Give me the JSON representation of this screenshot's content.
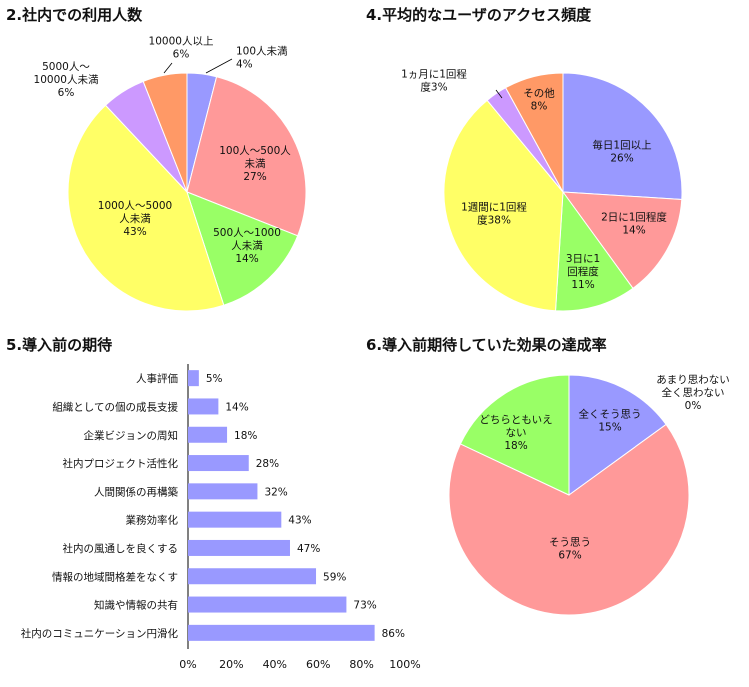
{
  "titles": {
    "p2": "2.社内での利用人数",
    "p4": "4.平均的なユーザのアクセス頻度",
    "p5": "5.導入前の期待",
    "p6": "6.導入前期待していた効果の達成率"
  },
  "chart_data": [
    {
      "type": "pie",
      "title": "2.社内での利用人数",
      "slices": [
        {
          "label": "100人未満",
          "value": 4,
          "color": "#9999ff"
        },
        {
          "label": "100人～500人未満",
          "value": 27,
          "color": "#ff9999"
        },
        {
          "label": "500人～1000人未満",
          "value": 14,
          "color": "#99ff66"
        },
        {
          "label": "1000人～5000人未満",
          "value": 43,
          "color": "#ffff66"
        },
        {
          "label": "5000人～10000人未満",
          "value": 6,
          "color": "#cc99ff"
        },
        {
          "label": "10000人以上",
          "value": 6,
          "color": "#ff9966"
        }
      ],
      "label_lines": [
        [
          "100人未満",
          "4%"
        ],
        [
          "100人～500人",
          "未満",
          "27%"
        ],
        [
          "500人～1000",
          "人未満",
          "14%"
        ],
        [
          "1000人～5000",
          "人未満",
          "43%"
        ],
        [
          "5000人～",
          "10000人未満",
          "6%"
        ],
        [
          "10000人以上",
          "6%"
        ]
      ]
    },
    {
      "type": "pie",
      "title": "4.平均的なユーザのアクセス頻度",
      "slices": [
        {
          "label": "毎日1回以上",
          "value": 26,
          "color": "#9999ff"
        },
        {
          "label": "2日に1回程度",
          "value": 14,
          "color": "#ff9999"
        },
        {
          "label": "3日に1回程度",
          "value": 11,
          "color": "#99ff66"
        },
        {
          "label": "1週間に1回程度",
          "value": 38,
          "color": "#ffff66"
        },
        {
          "label": "1ヵ月に1回程度",
          "value": 3,
          "color": "#cc99ff"
        },
        {
          "label": "その他",
          "value": 8,
          "color": "#ff9966"
        }
      ],
      "label_lines": [
        [
          "毎日1回以上",
          "26%"
        ],
        [
          "2日に1回程度",
          "14%"
        ],
        [
          "3日に1",
          "回程度",
          "11%"
        ],
        [
          "1週間に1回程",
          "度38%"
        ],
        [
          "1ヵ月に1回程",
          "度3%"
        ],
        [
          "その他",
          "8%"
        ]
      ]
    },
    {
      "type": "bar",
      "orientation": "horizontal",
      "title": "5.導入前の期待",
      "categories": [
        "人事評価",
        "組織としての個の成長支援",
        "企業ビジョンの周知",
        "社内プロジェクト活性化",
        "人間関係の再構築",
        "業務効率化",
        "社内の風通しを良くする",
        "情報の地域間格差をなくす",
        "知識や情報の共有",
        "社内のコミュニケーション円滑化"
      ],
      "values": [
        5,
        14,
        18,
        28,
        32,
        43,
        47,
        59,
        73,
        86
      ],
      "value_labels": [
        "5%",
        "14%",
        "18%",
        "28%",
        "32%",
        "43%",
        "47%",
        "59%",
        "73%",
        "86%"
      ],
      "xlim": [
        0,
        100
      ],
      "ticks": [
        "0%",
        "20%",
        "40%",
        "60%",
        "80%",
        "100%"
      ],
      "color": "#9999ff",
      "grid": false
    },
    {
      "type": "pie",
      "title": "6.導入前期待していた効果の達成率",
      "slices": [
        {
          "label": "全くそう思う",
          "value": 15,
          "color": "#9999ff"
        },
        {
          "label": "そう思う",
          "value": 67,
          "color": "#ff9999"
        },
        {
          "label": "どちらともいえない",
          "value": 18,
          "color": "#99ff66"
        },
        {
          "label": "あまり思わない",
          "value": 0,
          "color": "#ffff66"
        },
        {
          "label": "全く思わない",
          "value": 0,
          "color": "#cc99ff"
        }
      ],
      "label_lines": [
        [
          "全くそう思う",
          "15%"
        ],
        [
          "そう思う",
          "67%"
        ],
        [
          "どちらともいえ",
          "ない",
          "18%"
        ],
        [
          "あまり思わない",
          "全く思わない",
          "0%"
        ]
      ]
    }
  ]
}
